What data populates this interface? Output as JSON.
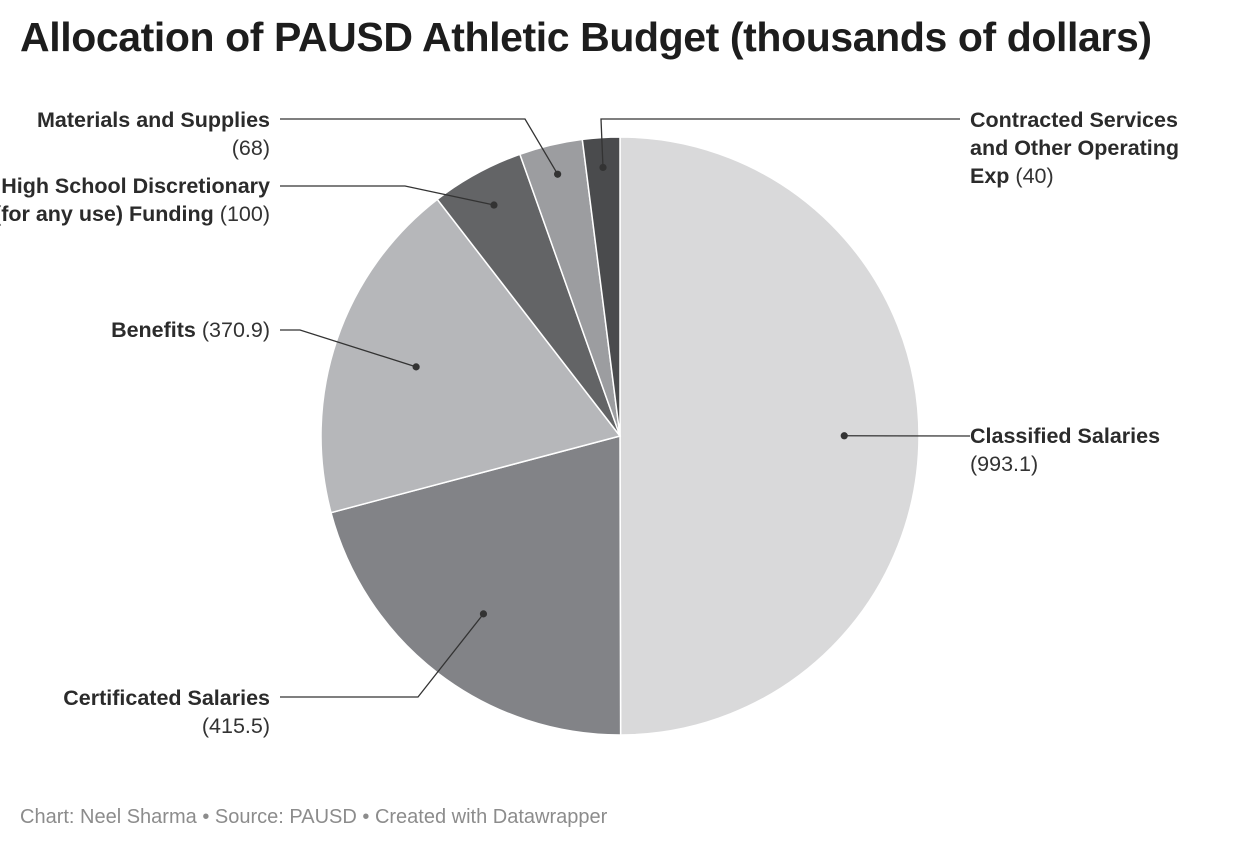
{
  "title": "Allocation of PAUSD Athletic Budget (thousands of dollars)",
  "footer": {
    "author": "Chart: Neel Sharma",
    "separator": "•",
    "source": "Source: PAUSD",
    "credit": "Created with Datawrapper"
  },
  "chart_data": {
    "type": "pie",
    "title": "Allocation of PAUSD Athletic Budget (thousands of dollars)",
    "units": "thousands of dollars",
    "slices": [
      {
        "label": "Classified Salaries",
        "value": 993.1,
        "value_text": "(993.1)",
        "color": "#d9d9da"
      },
      {
        "label": "Certificated Salaries",
        "value": 415.5,
        "value_text": "(415.5)",
        "color": "#828387"
      },
      {
        "label": "Benefits",
        "value": 370.9,
        "value_text": "(370.9)",
        "color": "#b6b7ba"
      },
      {
        "label": "High School Discretionary (for any use) Funding",
        "value": 100,
        "value_text": "(100)",
        "color": "#636466"
      },
      {
        "label": "Materials and Supplies",
        "value": 68,
        "value_text": "(68)",
        "color": "#9c9da0"
      },
      {
        "label": "Contracted Services and Other Operating Exp",
        "value": 40,
        "value_text": "(40)",
        "color": "#4a4b4d"
      }
    ]
  }
}
